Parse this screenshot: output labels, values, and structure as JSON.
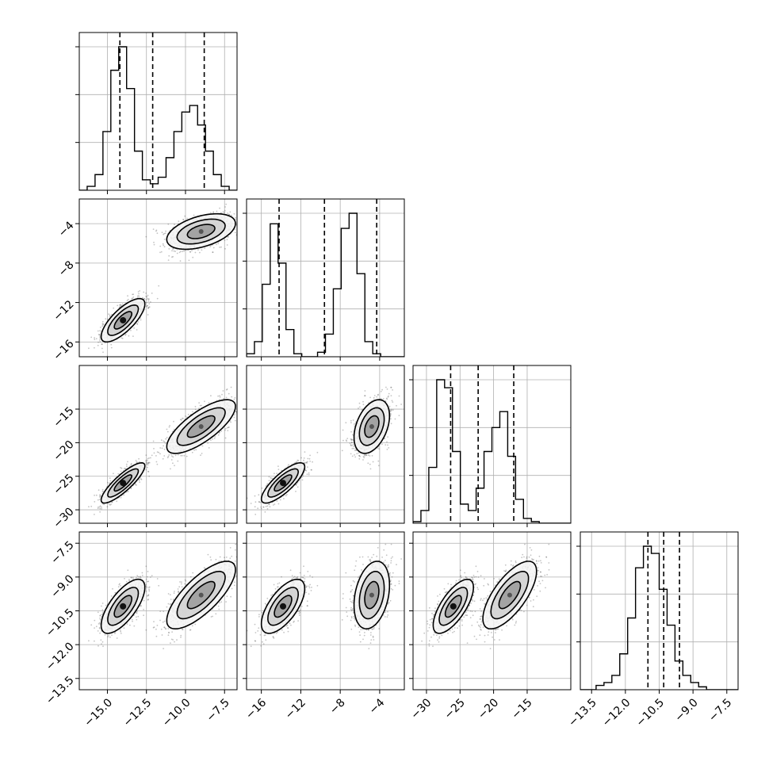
{
  "chart_data": {
    "type": "corner",
    "colors": {
      "line": "#000000",
      "grid": "#b0b0b0",
      "scatter": "#555555"
    },
    "grid": true,
    "parameters": [
      {
        "range": [
          -16.8,
          -6.7
        ],
        "ticks": [
          -15.0,
          -12.5,
          -10.0,
          -7.5
        ],
        "tick_labels": [
          "−15.0",
          "−12.5",
          "−10.0",
          "−7.5"
        ],
        "quantiles": [
          -14.2,
          -12.1,
          -8.8
        ]
      },
      {
        "range": [
          -17.5,
          -1.5
        ],
        "ticks": [
          -16,
          -12,
          -8,
          -4
        ],
        "tick_labels": [
          "−16",
          "−12",
          "−8",
          "−4"
        ],
        "quantiles": [
          -14.2,
          -9.6,
          -4.3
        ]
      },
      {
        "range": [
          -32.0,
          -8.5
        ],
        "ticks": [
          -30,
          -25,
          -20,
          -15
        ],
        "tick_labels": [
          "−30",
          "−25",
          "−20",
          "−15"
        ],
        "quantiles": [
          -26.4,
          -22.3,
          -17.0
        ]
      },
      {
        "range": [
          -14.0,
          -7.0
        ],
        "ticks": [
          -13.5,
          -12.0,
          -10.5,
          -9.0,
          -7.5
        ],
        "tick_labels": [
          "−13.5",
          "−12.0",
          "−10.5",
          "−9.0",
          "−7.5"
        ],
        "quantiles": [
          -11.0,
          -10.3,
          -9.6
        ]
      }
    ],
    "histograms": [
      {
        "param": 0,
        "edges_start": -16.8,
        "bin_width": 0.505,
        "counts": [
          0,
          3,
          12,
          45,
          92,
          110,
          78,
          30,
          8,
          5,
          10,
          25,
          45,
          60,
          65,
          50,
          30,
          12,
          3,
          0
        ]
      },
      {
        "param": 1,
        "edges_start": -17.5,
        "bin_width": 0.8,
        "counts": [
          2,
          10,
          48,
          88,
          62,
          18,
          2,
          0,
          0,
          3,
          15,
          45,
          85,
          95,
          55,
          10,
          2,
          0,
          0,
          0
        ]
      },
      {
        "param": 2,
        "edges_start": -32.0,
        "bin_width": 1.175,
        "counts": [
          1,
          8,
          35,
          90,
          85,
          45,
          12,
          8,
          22,
          45,
          60,
          70,
          42,
          15,
          3,
          1,
          0,
          0,
          0,
          0
        ]
      },
      {
        "param": 3,
        "edges_start": -14.0,
        "bin_width": 0.35,
        "counts": [
          0,
          0,
          3,
          5,
          10,
          25,
          50,
          85,
          100,
          95,
          70,
          45,
          20,
          10,
          5,
          2,
          0,
          0,
          0,
          0
        ]
      }
    ],
    "clusters": [
      {
        "means": [
          -14.0,
          -13.8,
          -26.0,
          -10.3
        ],
        "sds": [
          0.7,
          1.1,
          1.5,
          0.6
        ],
        "corr": [
          [
            1,
            0.75,
            0.85,
            0.7
          ],
          [
            0.75,
            1,
            0.8,
            0.65
          ],
          [
            0.85,
            0.8,
            1,
            0.7
          ],
          [
            0.7,
            0.65,
            0.7,
            1
          ]
        ]
      },
      {
        "means": [
          -9.0,
          -4.8,
          -17.6,
          -9.8
        ],
        "sds": [
          1.1,
          0.9,
          2.0,
          0.75
        ],
        "corr": [
          [
            1,
            0.45,
            0.75,
            0.75
          ],
          [
            0.45,
            1,
            0.4,
            0.3
          ],
          [
            0.75,
            0.4,
            1,
            0.7
          ],
          [
            0.75,
            0.3,
            0.7,
            1
          ]
        ]
      }
    ]
  }
}
